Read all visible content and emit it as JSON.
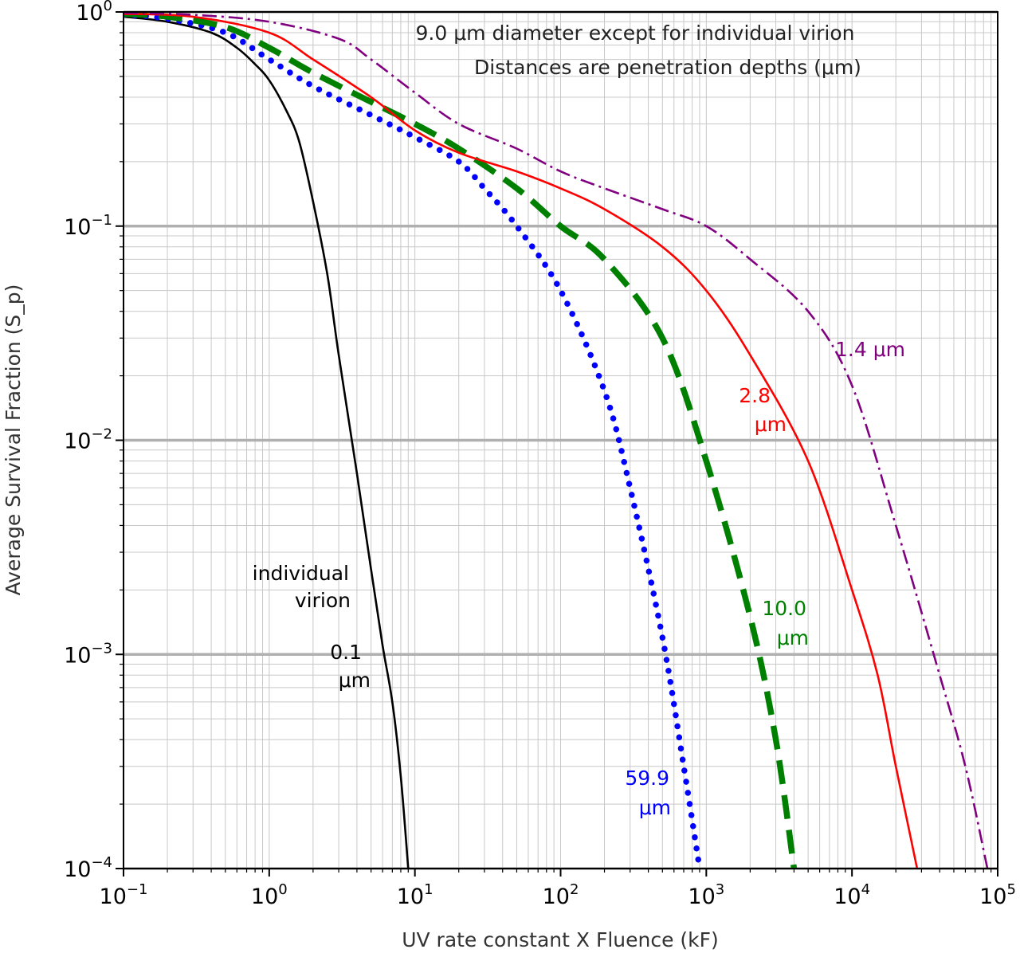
{
  "chart_data": {
    "type": "line",
    "xlabel": "UV rate constant X Fluence (kF)",
    "ylabel": "Average Survival Fraction (S_p)",
    "x_scale": "log",
    "y_scale": "log",
    "xlim": [
      0.1,
      100000
    ],
    "ylim": [
      0.0001,
      1
    ],
    "grid": true,
    "x_ticks": [
      "10^-1",
      "10^0",
      "10^1",
      "10^2",
      "10^3",
      "10^4",
      "10^5"
    ],
    "y_ticks": [
      "10^0",
      "10^-1",
      "10^-2",
      "10^-3",
      "10^-4"
    ],
    "annotations": [
      "9.0 μm diameter except for individual virion",
      "Distances are penetration depths (μm)"
    ],
    "series": [
      {
        "name": "individual virion 0.1 μm",
        "label_lines": [
          "individual",
          "virion",
          "0.1",
          "μm"
        ],
        "color": "#000000",
        "style": "solid",
        "x": [
          0.1,
          0.2,
          0.4,
          0.6,
          0.8,
          1.0,
          1.3,
          1.6,
          2.0,
          2.5,
          3.0,
          4.0,
          5.0,
          6.0,
          7.0,
          8.0,
          9.0
        ],
        "y": [
          0.95,
          0.9,
          0.8,
          0.68,
          0.57,
          0.48,
          0.35,
          0.25,
          0.13,
          0.06,
          0.025,
          0.007,
          0.0025,
          0.0011,
          0.0006,
          0.00027,
          0.0001
        ]
      },
      {
        "name": "59.9 μm",
        "label_lines": [
          "59.9",
          "μm"
        ],
        "color": "#0000ff",
        "style": "dotted",
        "x": [
          0.1,
          0.2,
          0.5,
          1,
          2,
          5,
          10,
          20,
          30,
          50,
          100,
          200,
          300,
          500,
          700,
          900
        ],
        "y": [
          0.97,
          0.93,
          0.8,
          0.6,
          0.45,
          0.33,
          0.26,
          0.2,
          0.15,
          0.1,
          0.05,
          0.017,
          0.006,
          0.0012,
          0.0003,
          0.0001
        ]
      },
      {
        "name": "10.0 μm",
        "label_lines": [
          "10.0",
          "μm"
        ],
        "color": "#008000",
        "style": "dashed",
        "x": [
          0.1,
          0.2,
          0.5,
          1,
          2,
          5,
          10,
          20,
          50,
          100,
          200,
          500,
          1000,
          2000,
          3000,
          4000
        ],
        "y": [
          0.98,
          0.95,
          0.85,
          0.68,
          0.52,
          0.38,
          0.3,
          0.23,
          0.15,
          0.1,
          0.07,
          0.03,
          0.008,
          0.0015,
          0.0004,
          0.0001
        ]
      },
      {
        "name": "2.8 μm",
        "label_lines": [
          "2.8",
          "μm"
        ],
        "color": "#ff0000",
        "style": "solid",
        "x": [
          0.1,
          0.3,
          1,
          2,
          5,
          10,
          20,
          50,
          100,
          200,
          500,
          1000,
          2000,
          5000,
          10000,
          15000,
          20000,
          28000
        ],
        "y": [
          0.98,
          0.95,
          0.8,
          0.6,
          0.4,
          0.28,
          0.22,
          0.18,
          0.15,
          0.12,
          0.08,
          0.05,
          0.025,
          0.008,
          0.002,
          0.0008,
          0.0003,
          0.0001
        ]
      },
      {
        "name": "1.4 μm",
        "label_lines": [
          "1.4 μm"
        ],
        "color": "#800080",
        "style": "dashdot",
        "x": [
          0.1,
          0.3,
          1,
          3,
          5,
          10,
          20,
          50,
          100,
          200,
          500,
          1000,
          2000,
          5000,
          10000,
          20000,
          40000,
          60000,
          85000
        ],
        "y": [
          0.99,
          0.97,
          0.9,
          0.75,
          0.6,
          0.42,
          0.3,
          0.23,
          0.18,
          0.15,
          0.12,
          0.1,
          0.07,
          0.04,
          0.018,
          0.004,
          0.0008,
          0.0003,
          0.0001
        ]
      }
    ]
  }
}
